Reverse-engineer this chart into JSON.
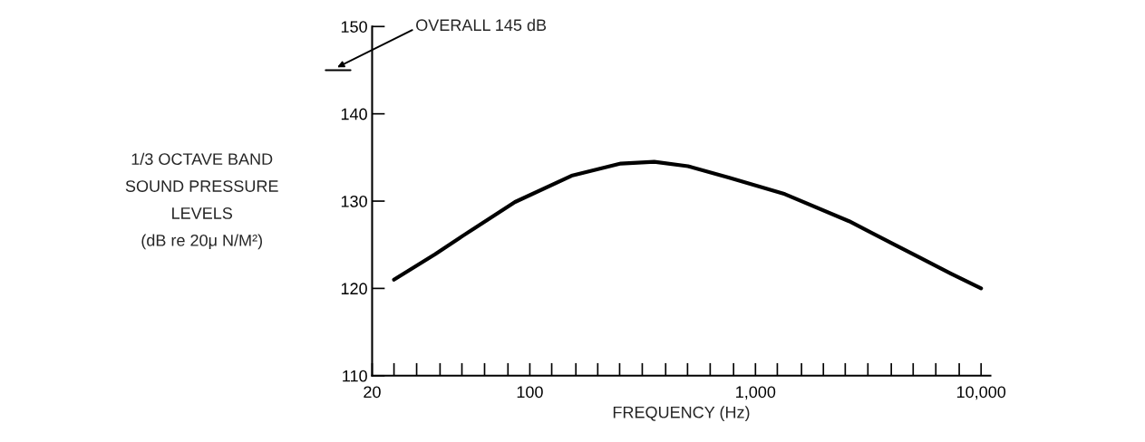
{
  "chart_data": {
    "type": "line",
    "ylabel": "1/3 OCTAVE BAND\nSOUND PRESSURE\nLEVELS\n(dB re 20μ N/M²)",
    "xlabel": "FREQUENCY (Hz)",
    "log": "x",
    "x": [
      25,
      38,
      51,
      86,
      153,
      253,
      356,
      502,
      760,
      1350,
      2600,
      4210,
      7350,
      10000
    ],
    "series": [
      {
        "color": "#000000",
        "values": [
          121,
          123.9,
          126.1,
          129.9,
          132.9,
          134.3,
          134.5,
          134,
          132.7,
          130.8,
          127.7,
          124.9,
          121.7,
          120
        ]
      }
    ],
    "xlim": [
      20,
      11000
    ],
    "xticks": [
      {
        "value": 20,
        "label": "20"
      },
      {
        "value": 25,
        "label": null
      },
      {
        "value": 31.5,
        "label": null
      },
      {
        "value": 40,
        "label": null
      },
      {
        "value": 50,
        "label": null
      },
      {
        "value": 63,
        "label": null
      },
      {
        "value": 80,
        "label": null
      },
      {
        "value": 100,
        "label": "100"
      },
      {
        "value": 125,
        "label": null
      },
      {
        "value": 160,
        "label": null
      },
      {
        "value": 200,
        "label": null
      },
      {
        "value": 250,
        "label": null
      },
      {
        "value": 315,
        "label": null
      },
      {
        "value": 400,
        "label": null
      },
      {
        "value": 500,
        "label": null
      },
      {
        "value": 630,
        "label": null
      },
      {
        "value": 800,
        "label": null
      },
      {
        "value": 1000,
        "label": "1,000"
      },
      {
        "value": 1250,
        "label": null
      },
      {
        "value": 1600,
        "label": null
      },
      {
        "value": 2000,
        "label": null
      },
      {
        "value": 2500,
        "label": null
      },
      {
        "value": 3150,
        "label": null
      },
      {
        "value": 4000,
        "label": null
      },
      {
        "value": 5000,
        "label": null
      },
      {
        "value": 6300,
        "label": null
      },
      {
        "value": 8000,
        "label": null
      },
      {
        "value": 10000,
        "label": "10,000"
      }
    ],
    "ylim": [
      110,
      150
    ],
    "yticks": [
      110,
      120,
      130,
      140,
      150
    ],
    "annotations": [
      "OVERALL 145 dB"
    ],
    "grid": false,
    "legend": false,
    "marker": "none",
    "line_style": "solid"
  }
}
